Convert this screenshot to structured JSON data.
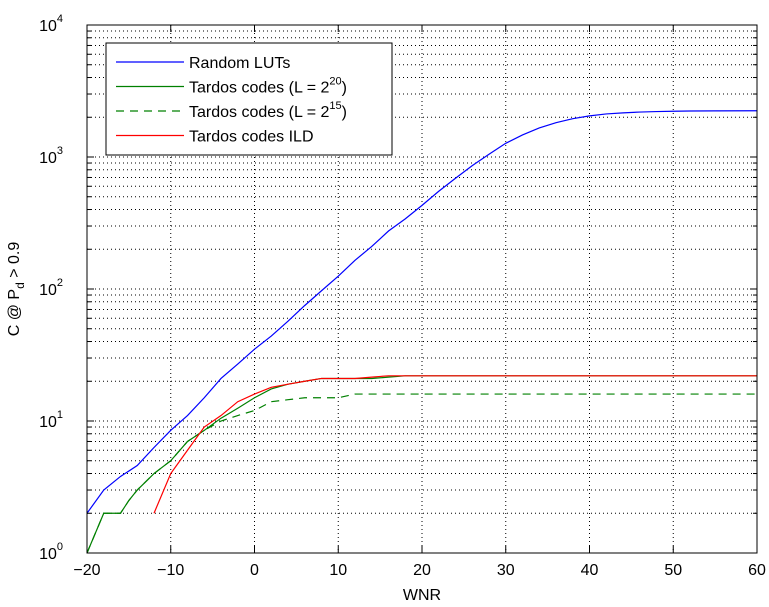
{
  "chart_data": {
    "type": "line",
    "title": "",
    "xlabel": "WNR",
    "ylabel": "C @ P_d > 0.9",
    "ylabel_parts": {
      "main": "C @ P",
      "sub": "d",
      "tail": " > 0.9"
    },
    "xlim": [
      -20,
      60
    ],
    "ylim": [
      1,
      10000
    ],
    "y_scale": "log",
    "grid": true,
    "grid_style": "dotted",
    "legend_position": "top-left",
    "x_ticks": [
      -20,
      -10,
      0,
      10,
      20,
      30,
      40,
      50,
      60
    ],
    "x_tick_labels": [
      "−20",
      "−10",
      "0",
      "10",
      "20",
      "30",
      "40",
      "50",
      "60"
    ],
    "y_ticks": [
      1,
      10,
      100,
      1000,
      10000
    ],
    "y_tick_labels": [
      {
        "base": "10",
        "exp": "0"
      },
      {
        "base": "10",
        "exp": "1"
      },
      {
        "base": "10",
        "exp": "2"
      },
      {
        "base": "10",
        "exp": "3"
      },
      {
        "base": "10",
        "exp": "4"
      }
    ],
    "series": [
      {
        "name": "Random LUTs",
        "color": "#0000ff",
        "dash": "solid",
        "legend": {
          "text": "Random LUTs",
          "exp": "",
          "suffix": ""
        },
        "x": [
          -20,
          -18,
          -16,
          -14,
          -12,
          -10,
          -8,
          -6,
          -4,
          -2,
          0,
          2,
          4,
          6,
          8,
          10,
          12,
          14,
          16,
          18,
          20,
          22,
          24,
          26,
          28,
          30,
          32,
          34,
          36,
          38,
          40,
          42,
          44,
          46,
          48,
          50,
          52,
          55,
          60
        ],
        "y": [
          2,
          3,
          3.8,
          4.6,
          6.3,
          8.5,
          11,
          15,
          21,
          27,
          35,
          44,
          57,
          75,
          97,
          125,
          165,
          210,
          275,
          340,
          430,
          550,
          690,
          860,
          1050,
          1270,
          1470,
          1660,
          1820,
          1950,
          2050,
          2120,
          2160,
          2190,
          2210,
          2220,
          2230,
          2235,
          2240
        ]
      },
      {
        "name": "Tardos codes (L = 2^20)",
        "color": "#008000",
        "dash": "solid",
        "legend": {
          "text": "Tardos codes (L = 2",
          "exp": "20",
          "suffix": ")"
        },
        "x": [
          -20,
          -18,
          -16,
          -15,
          -14,
          -12,
          -10,
          -8,
          -6,
          -4,
          -2,
          0,
          2,
          4,
          6,
          8,
          10,
          14,
          18,
          60
        ],
        "y": [
          1,
          2,
          2,
          2.5,
          3,
          4,
          5,
          7,
          8.5,
          10.5,
          12.5,
          15,
          17.5,
          19,
          20,
          21,
          21,
          21,
          22,
          22
        ]
      },
      {
        "name": "Tardos codes (L = 2^15)",
        "color": "#008000",
        "dash": "dashed",
        "legend": {
          "text": "Tardos codes (L = 2",
          "exp": "15",
          "suffix": ")"
        },
        "x": [
          -20,
          -18,
          -16,
          -15,
          -14,
          -12,
          -10,
          -8,
          -6,
          -4,
          -2,
          0,
          2,
          4,
          6,
          8,
          10,
          12,
          14,
          60
        ],
        "y": [
          1,
          2,
          2,
          2.5,
          3,
          4,
          5,
          7,
          8.5,
          10,
          11,
          12,
          14,
          14.5,
          15,
          15,
          15,
          16,
          16,
          16
        ]
      },
      {
        "name": "Tardos codes ILD",
        "color": "#ff0000",
        "dash": "solid",
        "legend": {
          "text": "Tardos codes ILD",
          "exp": "",
          "suffix": ""
        },
        "x": [
          -12,
          -10,
          -8,
          -6,
          -4,
          -2,
          0,
          2,
          4,
          6,
          8,
          10,
          12,
          14,
          16,
          18,
          60
        ],
        "y": [
          2,
          4,
          6,
          9,
          11,
          14,
          16,
          18,
          19,
          20,
          21,
          21,
          21,
          21.5,
          22,
          22,
          22
        ]
      }
    ]
  }
}
